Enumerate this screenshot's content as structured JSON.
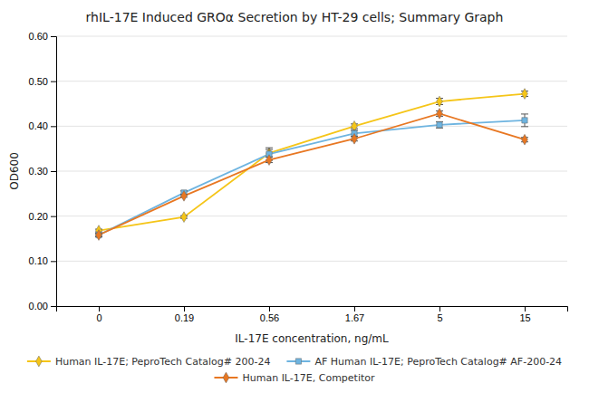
{
  "chart_data": {
    "type": "line",
    "title": "rhIL-17E Induced GROα Secretion by HT-29 cells; Summary Graph",
    "xlabel": "IL-17E concentration, ng/mL",
    "ylabel": "OD600",
    "categories": [
      "0",
      "0.19",
      "0.56",
      "1.67",
      "5",
      "15"
    ],
    "ylim": [
      0,
      0.6
    ],
    "yticks": [
      {
        "value": 0,
        "label": "0.00"
      },
      {
        "value": 0.1,
        "label": "0.10"
      },
      {
        "value": 0.2,
        "label": "0.20"
      },
      {
        "value": 0.3,
        "label": "0.30"
      },
      {
        "value": 0.4,
        "label": "0.40"
      },
      {
        "value": 0.5,
        "label": "0.50"
      },
      {
        "value": 0.6,
        "label": "0.60"
      }
    ],
    "grid": true,
    "legend": "bottom",
    "series": [
      {
        "name": "Human IL-17E; PeproTech Catalog# 200-24",
        "color": "#F5C518",
        "marker": "diamond",
        "values": [
          0.168,
          0.198,
          0.34,
          0.4,
          0.455,
          0.472
        ],
        "errors": [
          0.003,
          0.003,
          0.008,
          0.005,
          0.007,
          0.006
        ]
      },
      {
        "name": "AF Human IL-17E; PeproTech Catalog# AF-200-24",
        "color": "#6EB4E0",
        "marker": "square",
        "values": [
          0.158,
          0.252,
          0.338,
          0.384,
          0.403,
          0.413
        ],
        "errors": [
          0.004,
          0.004,
          0.014,
          0.007,
          0.007,
          0.014
        ]
      },
      {
        "name": "Human IL-17E, Competitor",
        "color": "#E87722",
        "marker": "diamond",
        "values": [
          0.158,
          0.245,
          0.325,
          0.372,
          0.428,
          0.37
        ],
        "errors": [
          0.003,
          0.003,
          0.006,
          0.005,
          0.006,
          0.005
        ]
      }
    ]
  }
}
